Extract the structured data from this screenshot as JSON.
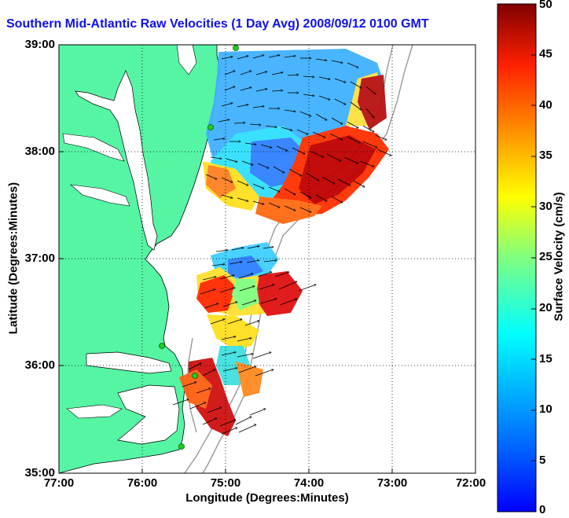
{
  "title": "Southern Mid-Atlantic Raw Velocities (1 Day Avg) 2008/09/12 0100 GMT",
  "axes": {
    "xlabel": "Longitude (Degrees:Minutes)",
    "ylabel": "Latitude (Degrees:Minutes)",
    "x_ticks": [
      "77:00",
      "76:00",
      "75:00",
      "74:00",
      "73:00",
      "72:00"
    ],
    "y_ticks": [
      "39:00",
      "38:00",
      "37:00",
      "36:00",
      "35:00"
    ],
    "x_range_deg_west": [
      77,
      72
    ],
    "y_range_deg_north": [
      35,
      39
    ],
    "grid": "dotted"
  },
  "colorbar": {
    "label": "Surface Velocity (cm/s)",
    "ticks": [
      "0",
      "5",
      "10",
      "15",
      "20",
      "25",
      "30",
      "35",
      "40",
      "45",
      "50"
    ],
    "min": 0,
    "max": 50
  },
  "colors": {
    "land": "#55f5a4",
    "water": "#ffffff",
    "title": "#1010ee",
    "coastline": "#000000",
    "bathymetry": "#999999",
    "station": "#22cc22"
  },
  "stations_shown": 5
}
